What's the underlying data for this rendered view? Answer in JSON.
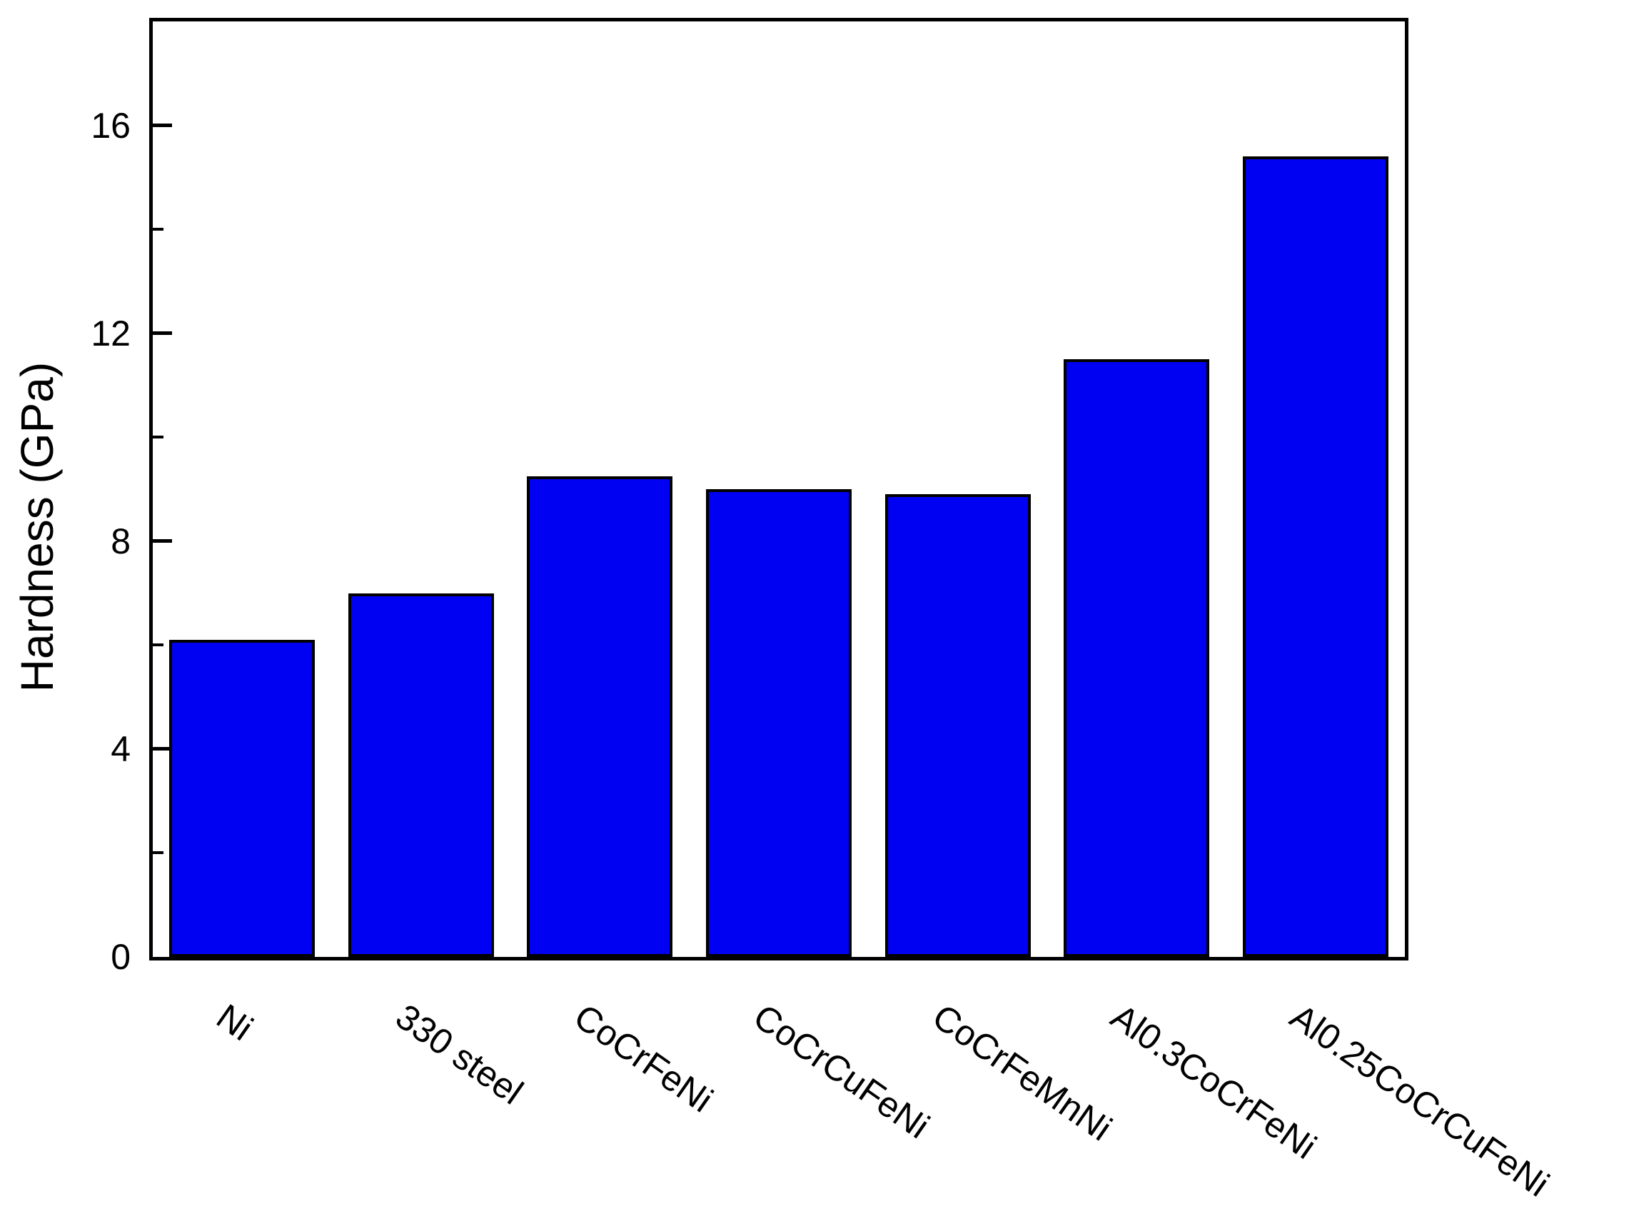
{
  "figure": {
    "background_color": "#ffffff",
    "axis_color": "#000000",
    "title": ""
  },
  "chart_data": {
    "type": "bar",
    "title": "",
    "xlabel": "",
    "ylabel": "Hardness (GPa)",
    "categories": [
      "Ni",
      "330 steel",
      "CoCrFeNi",
      "CoCrCuFeNi",
      "CoCrFeMnNi",
      "Al0.3CoCrFeNi",
      "Al0.25CoCrCuFeNi"
    ],
    "values": [
      6.1,
      7.0,
      9.25,
      9.0,
      8.9,
      11.5,
      15.4
    ],
    "ylim": [
      0,
      18
    ],
    "ytick_values": [
      0,
      4,
      8,
      12,
      16
    ],
    "ytick_labels": [
      "0",
      "4",
      "8",
      "12",
      "16"
    ],
    "yminor_tick_values": [
      2,
      6,
      10,
      14
    ],
    "category_label_rotation_deg": 35,
    "bar_fill_color": "#0000F2",
    "bar_edge_color": "#000000",
    "grid": false,
    "legend": null
  }
}
